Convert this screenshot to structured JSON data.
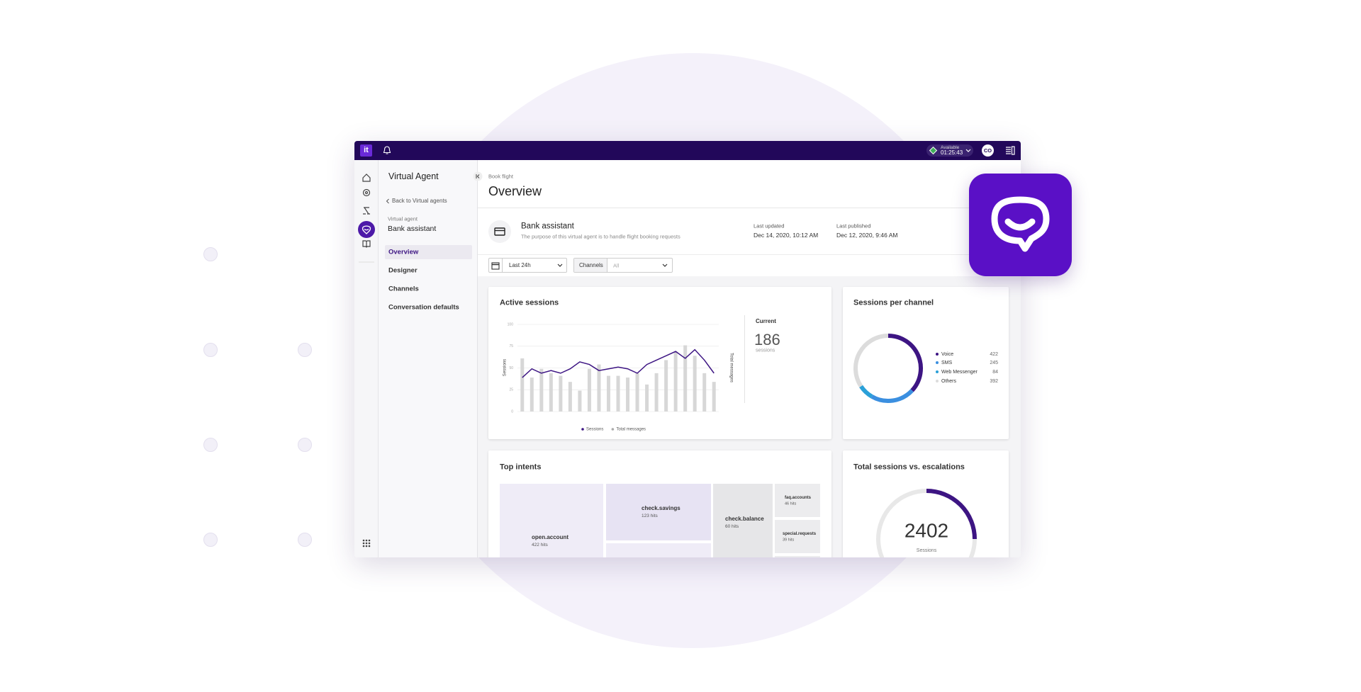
{
  "topbar": {
    "status": "Available",
    "timer": "01:25:43",
    "avatar": "CO"
  },
  "sidebar": {
    "title": "Virtual Agent",
    "back": "Back to Virtual agents",
    "agent_label": "Virtual agent",
    "agent_name": "Bank assistant",
    "nav": [
      "Overview",
      "Designer",
      "Channels",
      "Conversation defaults"
    ]
  },
  "header": {
    "breadcrumb": "Book flight",
    "title": "Overview",
    "agent": {
      "name": "Bank assistant",
      "description": "The purpose of this virtual agent is to handle flight booking requests"
    },
    "last_updated": {
      "label": "Last updated",
      "value": "Dec 14, 2020, 10:12 AM"
    },
    "last_published": {
      "label": "Last published",
      "value": "Dec 12, 2020, 9:46 AM"
    }
  },
  "filters": {
    "period": "Last 24h",
    "channels_label": "Channels",
    "channels_value": "All"
  },
  "active_sessions": {
    "title": "Active sessions",
    "chart": {
      "type": "bar",
      "y_label": "Sessions",
      "y2_label": "Total messages",
      "ylim": [
        0,
        100
      ],
      "yticks": [
        0,
        25,
        50,
        75,
        100
      ],
      "grid": true,
      "series": [
        {
          "name": "Sessions",
          "type": "line",
          "color": "#3d1583",
          "values": [
            39,
            49,
            44,
            47,
            44,
            49,
            57,
            54,
            47,
            49,
            51,
            49,
            44,
            54,
            59,
            64,
            69,
            61,
            71,
            59,
            44
          ]
        },
        {
          "name": "Total messages",
          "type": "bar",
          "color": "#d7d7d7",
          "values": [
            61,
            39,
            49,
            44,
            41,
            34,
            24,
            49,
            54,
            41,
            41,
            39,
            44,
            31,
            44,
            59,
            69,
            76,
            64,
            44,
            34
          ]
        }
      ]
    },
    "current": {
      "label": "Current",
      "value": 186,
      "unit": "sessions"
    }
  },
  "sessions_per_channel": {
    "title": "Sessions per channel",
    "chart": {
      "type": "donut",
      "categories": [
        "Voice",
        "SMS",
        "Web Messenger",
        "Others"
      ],
      "values": [
        422,
        245,
        84,
        392
      ],
      "colors": [
        "#3d1583",
        "#3b8fe0",
        "#2aa0d8",
        "#dcdcdc"
      ]
    }
  },
  "top_intents": {
    "title": "Top intents",
    "tiles": [
      {
        "name": "open.account",
        "hits": "422 hits"
      },
      {
        "name": "check.savings",
        "hits": "123 hits"
      },
      {
        "name": "check.balance",
        "hits": "60 hits"
      },
      {
        "name": "faq.accounts",
        "hits": "46 hits"
      },
      {
        "name": "special.requests",
        "hits": "39 hits"
      }
    ]
  },
  "total_sessions": {
    "title": "Total sessions vs. escalations",
    "value": 2402,
    "label": "Sessions"
  }
}
